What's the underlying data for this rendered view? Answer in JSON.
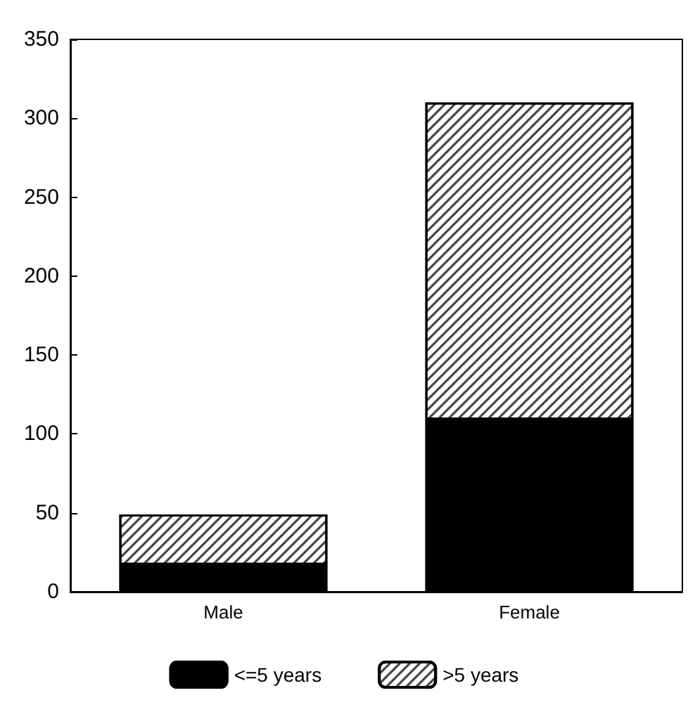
{
  "chart_data": {
    "type": "bar",
    "stacked": true,
    "categories": [
      "Male",
      "Female"
    ],
    "series": [
      {
        "name": "<=5 years",
        "color": "#000000",
        "values": [
          17,
          109
        ]
      },
      {
        "name": ">5 years",
        "color": "#ffffff",
        "values": [
          32,
          201
        ]
      }
    ],
    "ylim": [
      0,
      350
    ],
    "yticks": [
      0,
      50,
      100,
      150,
      200,
      250,
      300,
      350
    ],
    "grid": false,
    "legend": "bottom"
  }
}
